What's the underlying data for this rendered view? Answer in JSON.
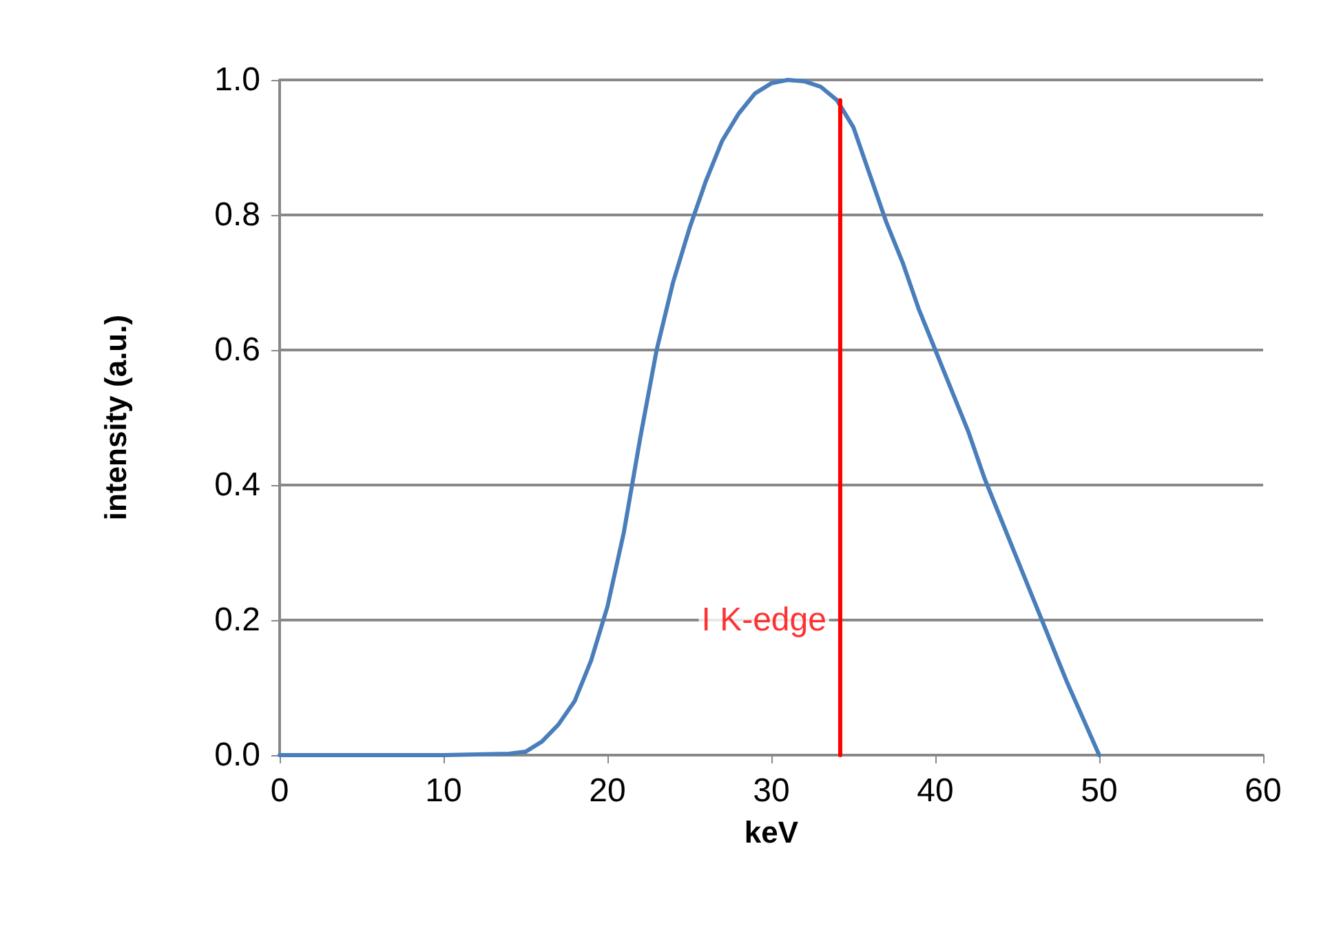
{
  "chart_data": {
    "type": "line",
    "xlabel": "keV",
    "ylabel": "intensity (a.u.)",
    "xlim": [
      0,
      60
    ],
    "xticks": [
      0,
      10,
      20,
      30,
      40,
      50,
      60
    ],
    "ylim": [
      0,
      1
    ],
    "yticks": [
      {
        "value": 0,
        "label": "0.0"
      },
      {
        "value": 0.2,
        "label": "0.2"
      },
      {
        "value": 0.4,
        "label": "0.4"
      },
      {
        "value": 0.6,
        "label": "0.6"
      },
      {
        "value": 0.8,
        "label": "0.8"
      },
      {
        "value": 1,
        "label": "1.0"
      }
    ],
    "grid": "y",
    "marker": "none",
    "line_style": "solid",
    "series": [
      {
        "color": "#4a7ebb",
        "x": [
          0,
          5,
          10,
          14,
          15,
          16,
          17,
          18,
          19,
          20,
          21,
          22,
          23,
          24,
          25,
          26,
          27,
          28,
          29,
          30,
          31,
          32,
          33,
          34,
          35,
          36,
          37,
          38,
          39,
          40,
          41,
          42,
          43,
          44,
          45,
          46,
          47,
          48,
          49,
          50
        ],
        "values": [
          0,
          0,
          0,
          0.002,
          0.005,
          0.02,
          0.045,
          0.08,
          0.14,
          0.22,
          0.33,
          0.47,
          0.6,
          0.7,
          0.78,
          0.85,
          0.91,
          0.95,
          0.98,
          0.995,
          1.0,
          0.998,
          0.99,
          0.97,
          0.93,
          0.86,
          0.79,
          0.73,
          0.66,
          0.6,
          0.54,
          0.48,
          0.41,
          0.35,
          0.29,
          0.23,
          0.17,
          0.11,
          0.055,
          0
        ]
      },
      {
        "color": "#ff0000",
        "x": [
          34.2,
          34.2
        ],
        "values": [
          0,
          0.97
        ]
      }
    ],
    "annotations": [
      {
        "text": "I K-edge",
        "x": 34.2,
        "y": 0.2
      }
    ]
  }
}
